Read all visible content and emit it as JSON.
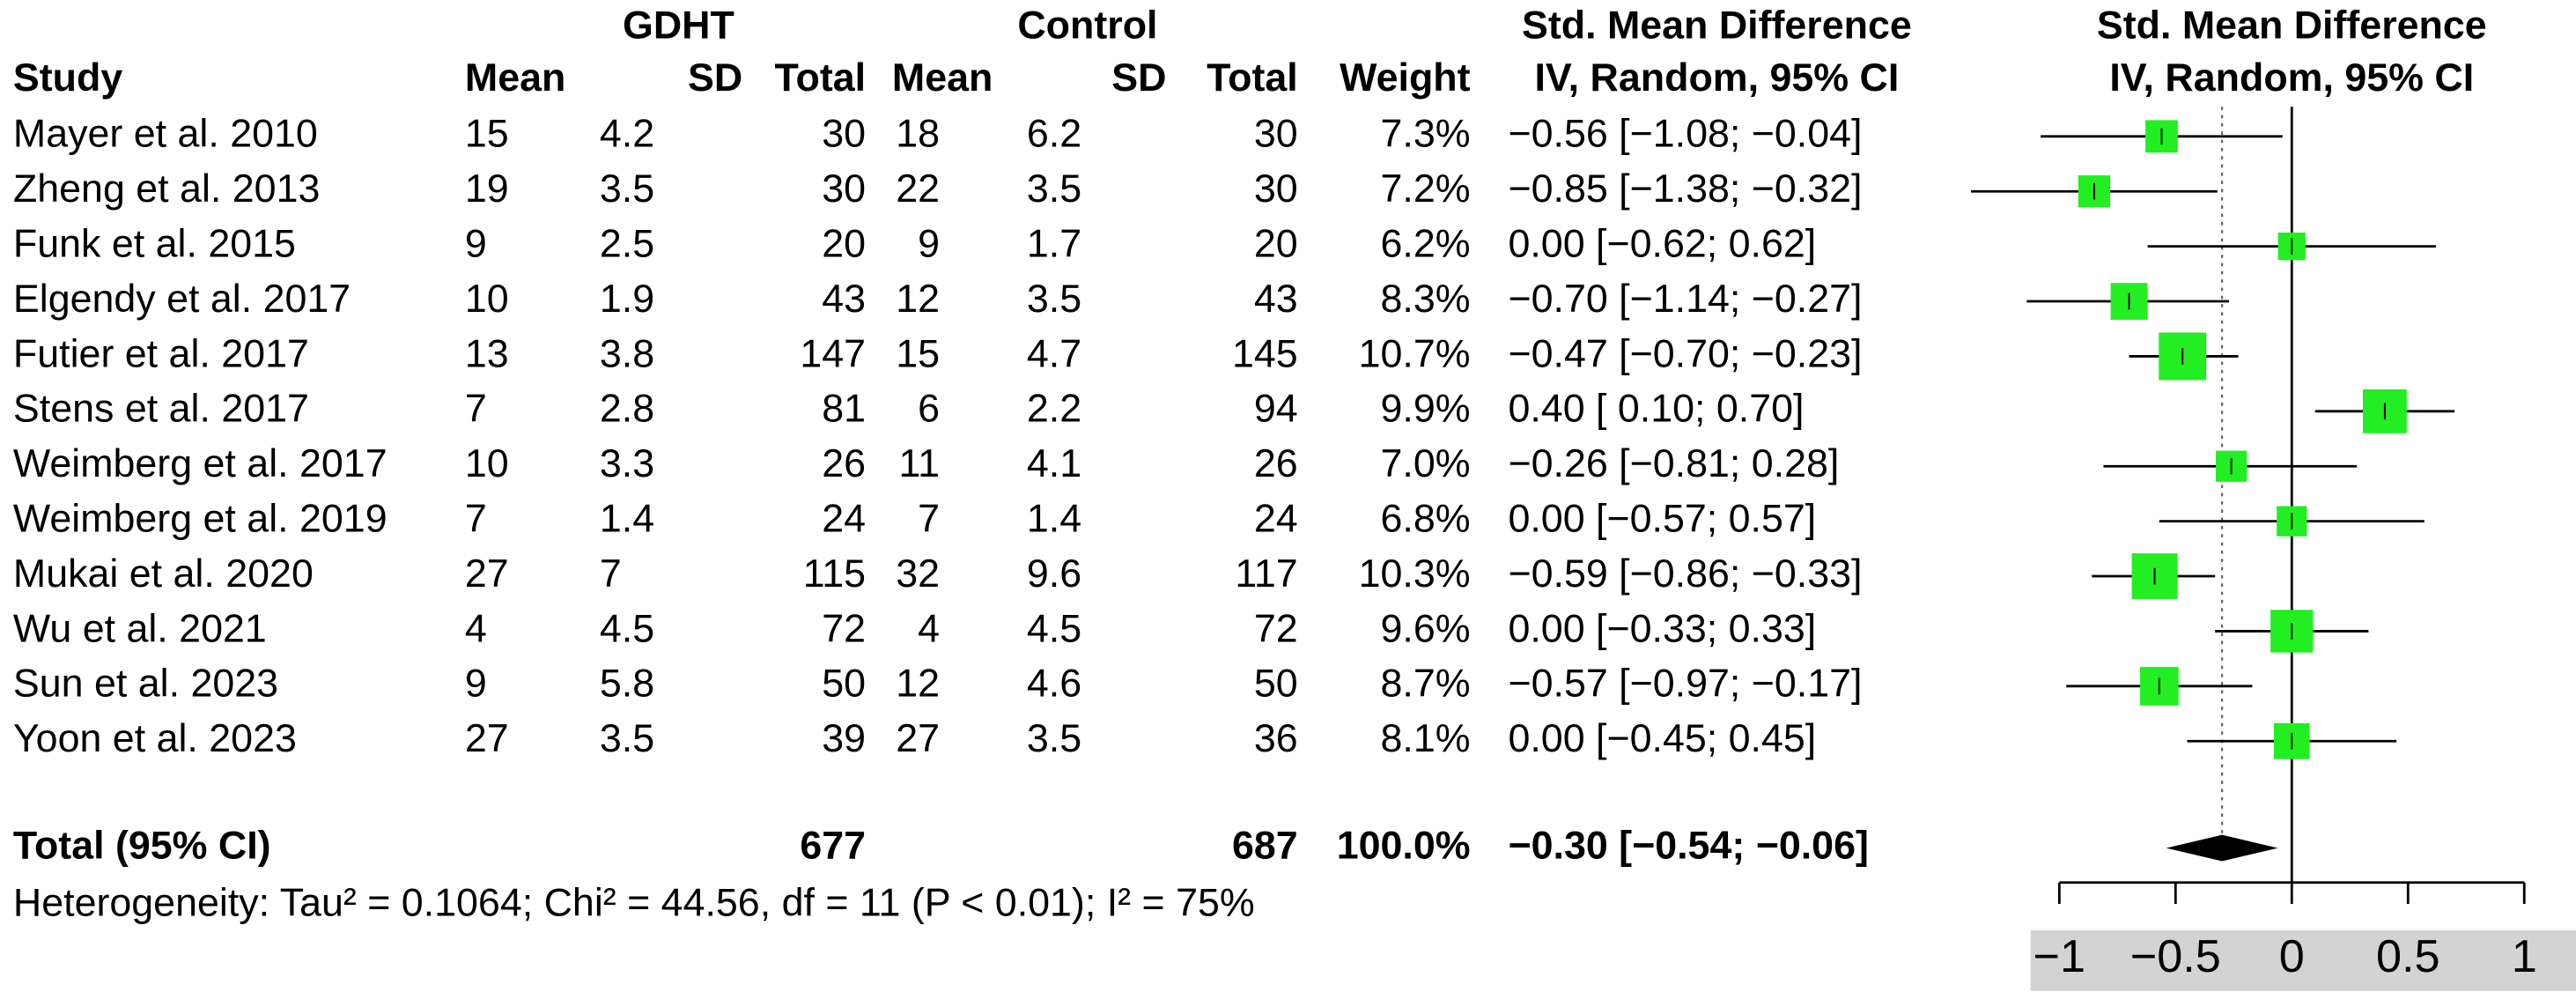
{
  "chart_data": {
    "type": "forest",
    "group_headers": [
      "GDHT",
      "Control",
      "Std. Mean Difference",
      "Std. Mean Difference"
    ],
    "columns": [
      "Study",
      "Mean",
      "SD",
      "Total",
      "Mean",
      "SD",
      "Total",
      "Weight",
      "IV, Random, 95% CI",
      "IV, Random, 95% CI"
    ],
    "studies": [
      {
        "name": "Mayer et al. 2010",
        "gdht_mean": 15,
        "gdht_sd": 4.2,
        "gdht_total": 30,
        "ctrl_mean": 18,
        "ctrl_sd": 6.2,
        "ctrl_total": 30,
        "weight": 7.3,
        "weight_label": "7.3%",
        "ci": "−0.56 [−1.08; −0.04]",
        "smd": -0.56,
        "lower": -1.08,
        "upper": -0.04
      },
      {
        "name": "Zheng et al. 2013",
        "gdht_mean": 19,
        "gdht_sd": 3.5,
        "gdht_total": 30,
        "ctrl_mean": 22,
        "ctrl_sd": 3.5,
        "ctrl_total": 30,
        "weight": 7.2,
        "weight_label": "7.2%",
        "ci": "−0.85 [−1.38; −0.32]",
        "smd": -0.85,
        "lower": -1.38,
        "upper": -0.32
      },
      {
        "name": "Funk et al. 2015",
        "gdht_mean": 9,
        "gdht_sd": 2.5,
        "gdht_total": 20,
        "ctrl_mean": 9,
        "ctrl_sd": 1.7,
        "ctrl_total": 20,
        "weight": 6.2,
        "weight_label": "6.2%",
        "ci": "0.00 [−0.62; 0.62]",
        "smd": 0.0,
        "lower": -0.62,
        "upper": 0.62
      },
      {
        "name": "Elgendy et al. 2017",
        "gdht_mean": 10,
        "gdht_sd": 1.9,
        "gdht_total": 43,
        "ctrl_mean": 12,
        "ctrl_sd": 3.5,
        "ctrl_total": 43,
        "weight": 8.3,
        "weight_label": "8.3%",
        "ci": "−0.70 [−1.14; −0.27]",
        "smd": -0.7,
        "lower": -1.14,
        "upper": -0.27
      },
      {
        "name": "Futier et al. 2017",
        "gdht_mean": 13,
        "gdht_sd": 3.8,
        "gdht_total": 147,
        "ctrl_mean": 15,
        "ctrl_sd": 4.7,
        "ctrl_total": 145,
        "weight": 10.7,
        "weight_label": "10.7%",
        "ci": "−0.47 [−0.70; −0.23]",
        "smd": -0.47,
        "lower": -0.7,
        "upper": -0.23
      },
      {
        "name": "Stens et al. 2017",
        "gdht_mean": 7,
        "gdht_sd": 2.8,
        "gdht_total": 81,
        "ctrl_mean": 6,
        "ctrl_sd": 2.2,
        "ctrl_total": 94,
        "weight": 9.9,
        "weight_label": "9.9%",
        "ci": "0.40 [ 0.10; 0.70]",
        "smd": 0.4,
        "lower": 0.1,
        "upper": 0.7
      },
      {
        "name": "Weimberg et al. 2017",
        "gdht_mean": 10,
        "gdht_sd": 3.3,
        "gdht_total": 26,
        "ctrl_mean": 11,
        "ctrl_sd": 4.1,
        "ctrl_total": 26,
        "weight": 7.0,
        "weight_label": "7.0%",
        "ci": "−0.26 [−0.81; 0.28]",
        "smd": -0.26,
        "lower": -0.81,
        "upper": 0.28
      },
      {
        "name": "Weimberg et al. 2019",
        "gdht_mean": 7,
        "gdht_sd": 1.4,
        "gdht_total": 24,
        "ctrl_mean": 7,
        "ctrl_sd": 1.4,
        "ctrl_total": 24,
        "weight": 6.8,
        "weight_label": "6.8%",
        "ci": "0.00 [−0.57; 0.57]",
        "smd": 0.0,
        "lower": -0.57,
        "upper": 0.57
      },
      {
        "name": "Mukai et al. 2020",
        "gdht_mean": 27,
        "gdht_sd": 7,
        "gdht_total": 115,
        "ctrl_mean": 32,
        "ctrl_sd": 9.6,
        "ctrl_total": 117,
        "weight": 10.3,
        "weight_label": "10.3%",
        "ci": "−0.59 [−0.86; −0.33]",
        "smd": -0.59,
        "lower": -0.86,
        "upper": -0.33
      },
      {
        "name": "Wu et al. 2021",
        "gdht_mean": 4,
        "gdht_sd": 4.5,
        "gdht_total": 72,
        "ctrl_mean": 4,
        "ctrl_sd": 4.5,
        "ctrl_total": 72,
        "weight": 9.6,
        "weight_label": "9.6%",
        "ci": "0.00 [−0.33; 0.33]",
        "smd": 0.0,
        "lower": -0.33,
        "upper": 0.33
      },
      {
        "name": "Sun et al. 2023",
        "gdht_mean": 9,
        "gdht_sd": 5.8,
        "gdht_total": 50,
        "ctrl_mean": 12,
        "ctrl_sd": 4.6,
        "ctrl_total": 50,
        "weight": 8.7,
        "weight_label": "8.7%",
        "ci": "−0.57 [−0.97; −0.17]",
        "smd": -0.57,
        "lower": -0.97,
        "upper": -0.17
      },
      {
        "name": "Yoon et al. 2023",
        "gdht_mean": 27,
        "gdht_sd": 3.5,
        "gdht_total": 39,
        "ctrl_mean": 27,
        "ctrl_sd": 3.5,
        "ctrl_total": 36,
        "weight": 8.1,
        "weight_label": "8.1%",
        "ci": "0.00 [−0.45; 0.45]",
        "smd": 0.0,
        "lower": -0.45,
        "upper": 0.45
      }
    ],
    "total": {
      "name": "Total (95% CI)",
      "gdht_total": 677,
      "ctrl_total": 687,
      "weight": 100.0,
      "weight_label": "100.0%",
      "ci": "−0.30 [−0.54; −0.06]",
      "smd": -0.3,
      "lower": -0.54,
      "upper": -0.06
    },
    "heterogeneity": "Heterogeneity: Tau² = 0.1064; Chi² = 44.56, df = 11 (P < 0.01); I² = 75%",
    "xlim": [
      -1,
      1
    ],
    "xticks": [
      {
        "value": -1,
        "label": "−1"
      },
      {
        "value": -0.5,
        "label": "−0.5"
      },
      0,
      0.5,
      1
    ],
    "reference_line": 0,
    "color": "#22ee22"
  }
}
